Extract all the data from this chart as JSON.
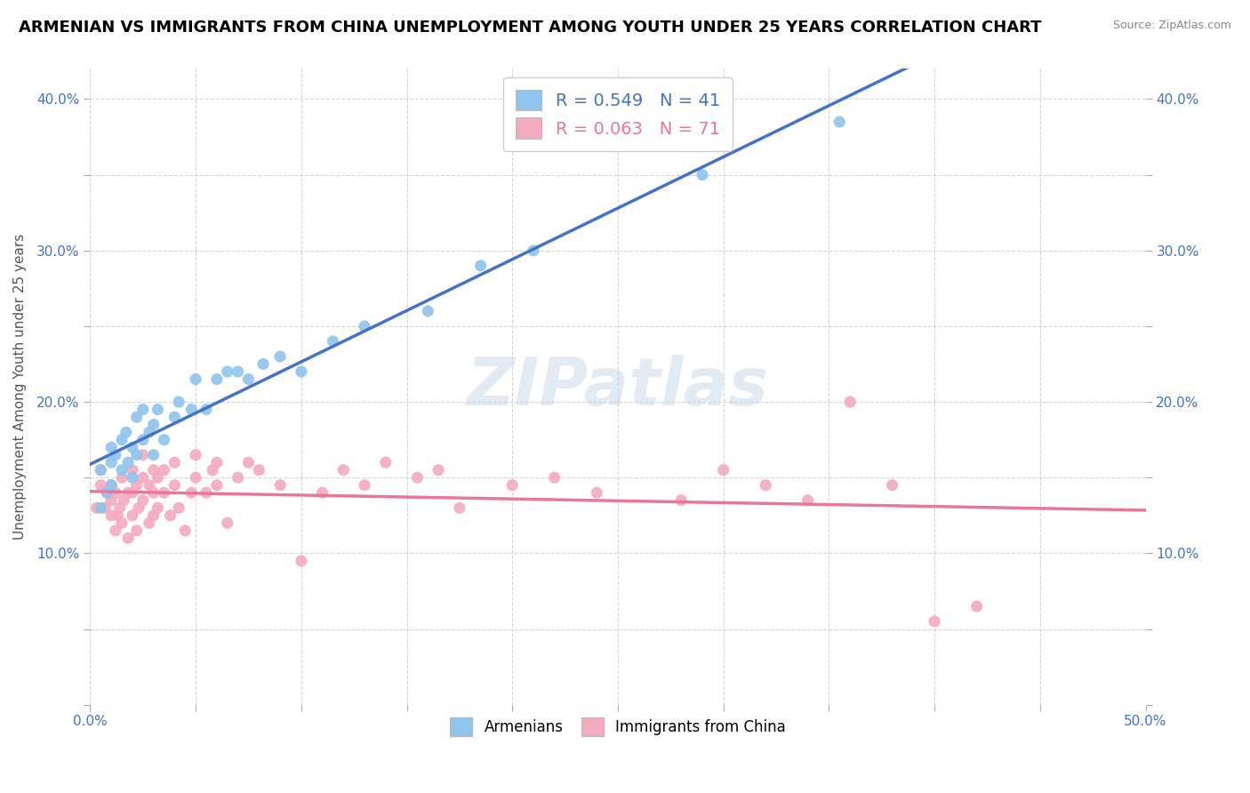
{
  "title": "ARMENIAN VS IMMIGRANTS FROM CHINA UNEMPLOYMENT AMONG YOUTH UNDER 25 YEARS CORRELATION CHART",
  "source": "Source: ZipAtlas.com",
  "ylabel": "Unemployment Among Youth under 25 years",
  "xlim": [
    0.0,
    0.5
  ],
  "ylim": [
    0.0,
    0.42
  ],
  "xticks": [
    0.0,
    0.05,
    0.1,
    0.15,
    0.2,
    0.25,
    0.3,
    0.35,
    0.4,
    0.45,
    0.5
  ],
  "yticks": [
    0.0,
    0.05,
    0.1,
    0.15,
    0.2,
    0.25,
    0.3,
    0.35,
    0.4
  ],
  "armenian_color": "#8EC4EE",
  "china_color": "#F4AABF",
  "armenian_line_color": "#4472C4",
  "china_line_color": "#E87898",
  "R_armenian": 0.549,
  "N_armenian": 41,
  "R_china": 0.063,
  "N_china": 71,
  "legend_label_armenian": "Armenians",
  "legend_label_china": "Immigrants from China",
  "watermark": "ZIPatlas",
  "title_fontsize": 13,
  "label_fontsize": 11,
  "tick_fontsize": 11,
  "armenian_x": [
    0.005,
    0.005,
    0.008,
    0.01,
    0.01,
    0.01,
    0.012,
    0.015,
    0.015,
    0.017,
    0.018,
    0.02,
    0.02,
    0.022,
    0.022,
    0.025,
    0.025,
    0.028,
    0.03,
    0.03,
    0.032,
    0.035,
    0.04,
    0.042,
    0.048,
    0.05,
    0.055,
    0.06,
    0.065,
    0.07,
    0.075,
    0.082,
    0.09,
    0.1,
    0.115,
    0.13,
    0.16,
    0.185,
    0.21,
    0.29,
    0.355
  ],
  "armenian_y": [
    0.13,
    0.155,
    0.14,
    0.16,
    0.17,
    0.145,
    0.165,
    0.155,
    0.175,
    0.18,
    0.16,
    0.15,
    0.17,
    0.165,
    0.19,
    0.175,
    0.195,
    0.18,
    0.185,
    0.165,
    0.195,
    0.175,
    0.19,
    0.2,
    0.195,
    0.215,
    0.195,
    0.215,
    0.22,
    0.22,
    0.215,
    0.225,
    0.23,
    0.22,
    0.24,
    0.25,
    0.26,
    0.29,
    0.3,
    0.35,
    0.385
  ],
  "china_x": [
    0.003,
    0.005,
    0.005,
    0.007,
    0.008,
    0.01,
    0.01,
    0.01,
    0.012,
    0.012,
    0.013,
    0.014,
    0.015,
    0.015,
    0.016,
    0.018,
    0.018,
    0.02,
    0.02,
    0.02,
    0.022,
    0.022,
    0.023,
    0.025,
    0.025,
    0.025,
    0.028,
    0.028,
    0.03,
    0.03,
    0.03,
    0.032,
    0.032,
    0.035,
    0.035,
    0.038,
    0.04,
    0.04,
    0.042,
    0.045,
    0.048,
    0.05,
    0.05,
    0.055,
    0.058,
    0.06,
    0.06,
    0.065,
    0.07,
    0.075,
    0.08,
    0.09,
    0.1,
    0.11,
    0.12,
    0.13,
    0.14,
    0.155,
    0.165,
    0.175,
    0.2,
    0.22,
    0.24,
    0.28,
    0.3,
    0.32,
    0.34,
    0.36,
    0.38,
    0.4,
    0.42
  ],
  "china_y": [
    0.13,
    0.145,
    0.155,
    0.13,
    0.14,
    0.125,
    0.135,
    0.145,
    0.115,
    0.14,
    0.125,
    0.13,
    0.12,
    0.15,
    0.135,
    0.11,
    0.14,
    0.125,
    0.14,
    0.155,
    0.115,
    0.145,
    0.13,
    0.135,
    0.15,
    0.165,
    0.12,
    0.145,
    0.125,
    0.14,
    0.155,
    0.13,
    0.15,
    0.14,
    0.155,
    0.125,
    0.145,
    0.16,
    0.13,
    0.115,
    0.14,
    0.15,
    0.165,
    0.14,
    0.155,
    0.145,
    0.16,
    0.12,
    0.15,
    0.16,
    0.155,
    0.145,
    0.095,
    0.14,
    0.155,
    0.145,
    0.16,
    0.15,
    0.155,
    0.13,
    0.145,
    0.15,
    0.14,
    0.135,
    0.155,
    0.145,
    0.135,
    0.2,
    0.145,
    0.055,
    0.065
  ]
}
